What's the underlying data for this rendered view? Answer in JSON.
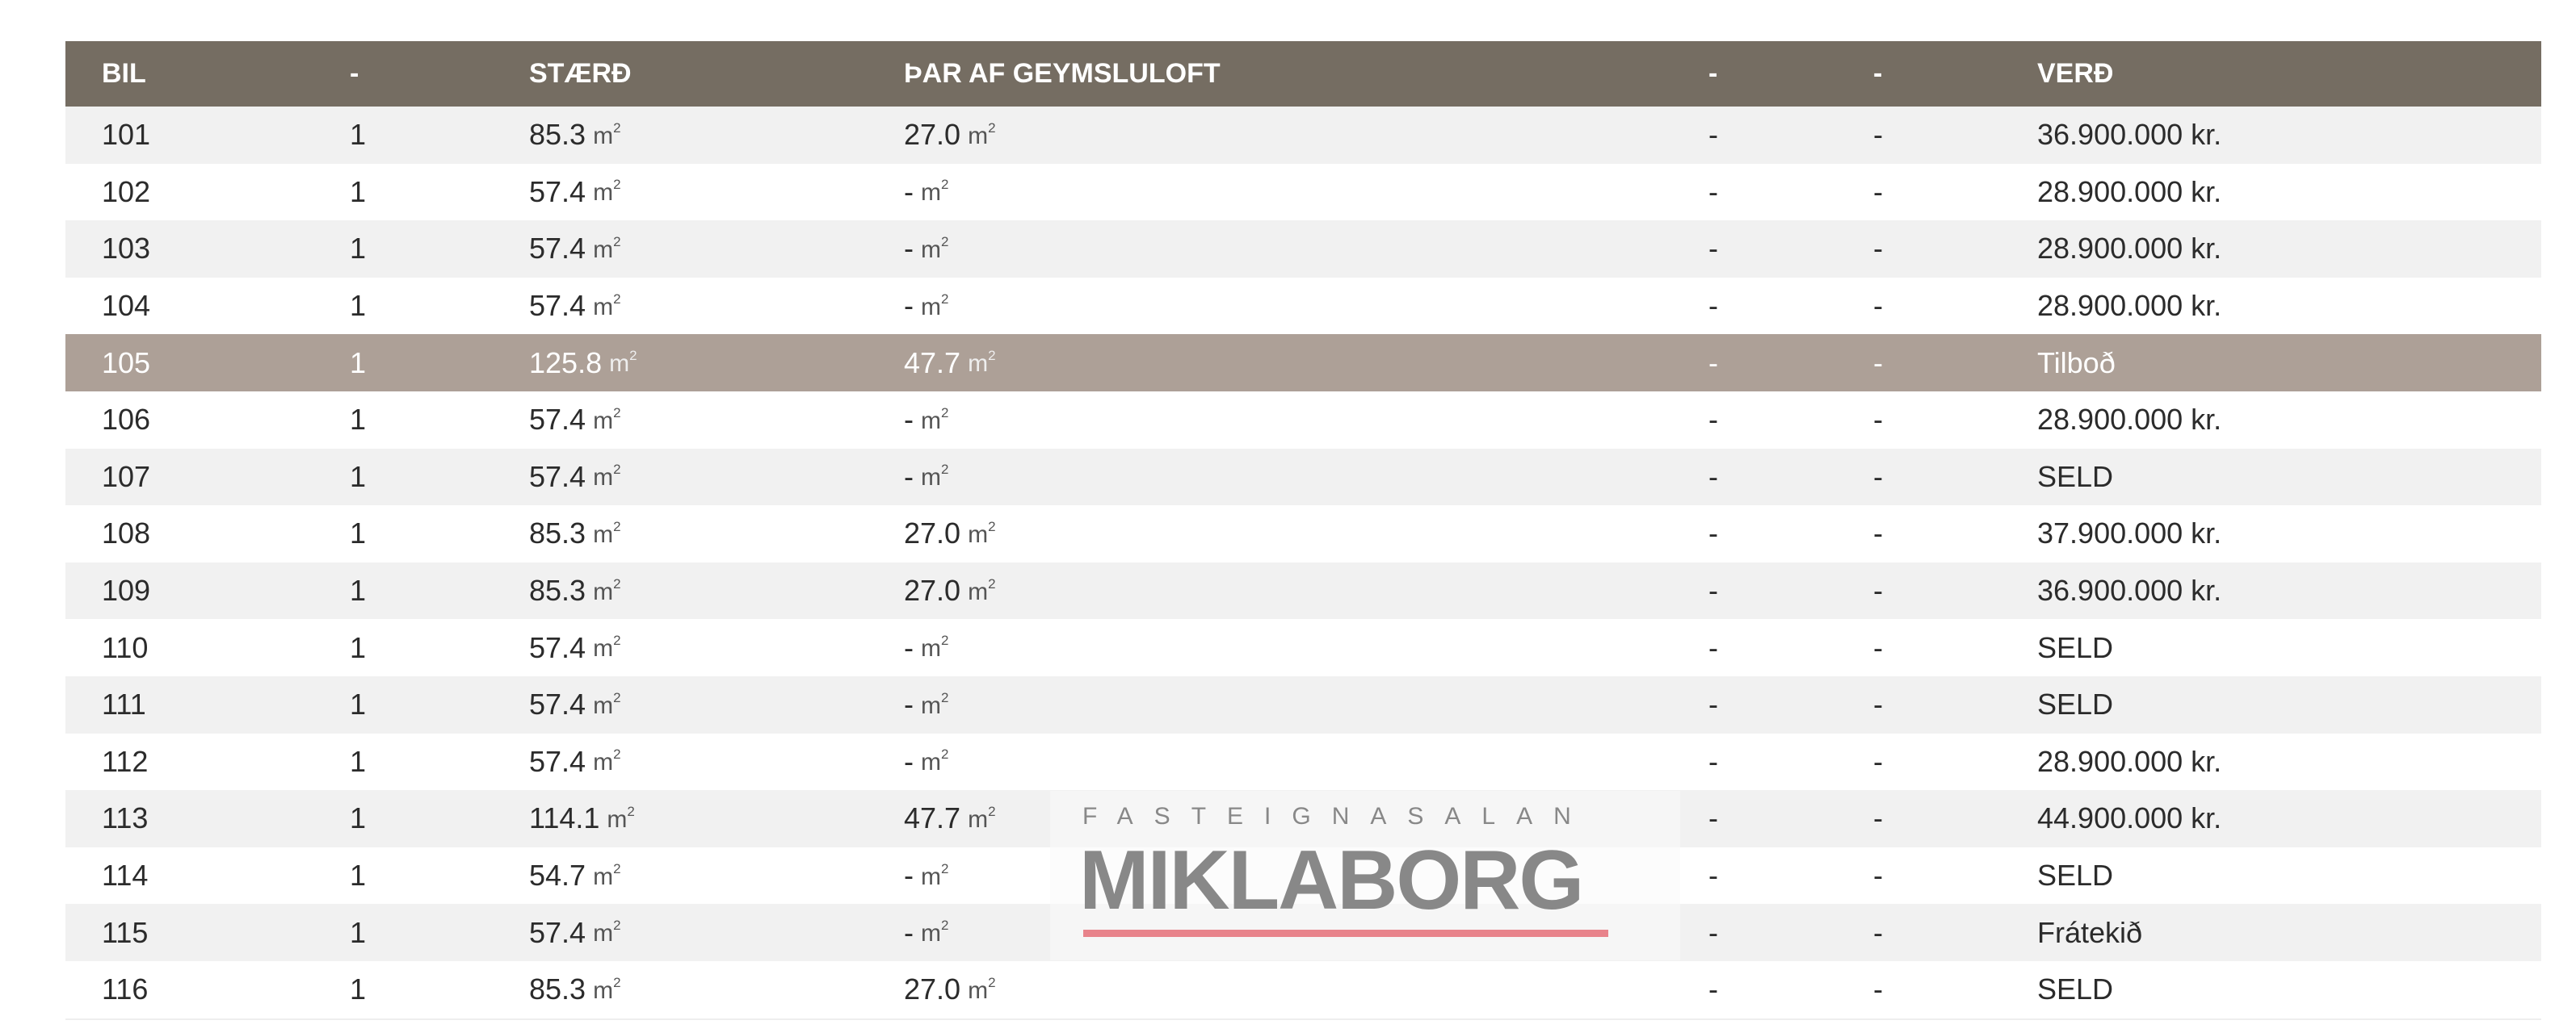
{
  "table": {
    "headers": [
      "BIL",
      "-",
      "STÆRÐ",
      "ÞAR AF GEYMSLULOFT",
      "-",
      "-",
      "VERÐ"
    ],
    "unit": "m",
    "unit_sup": "2",
    "highlighted_row": "105",
    "rows": [
      {
        "bil": "101",
        "c1": "1",
        "size": "85.3",
        "loft": "27.0",
        "c4": "-",
        "c5": "-",
        "price": "36.900.000 kr."
      },
      {
        "bil": "102",
        "c1": "1",
        "size": "57.4",
        "loft": "-",
        "c4": "-",
        "c5": "-",
        "price": "28.900.000 kr."
      },
      {
        "bil": "103",
        "c1": "1",
        "size": "57.4",
        "loft": "-",
        "c4": "-",
        "c5": "-",
        "price": "28.900.000 kr."
      },
      {
        "bil": "104",
        "c1": "1",
        "size": "57.4",
        "loft": "-",
        "c4": "-",
        "c5": "-",
        "price": "28.900.000 kr."
      },
      {
        "bil": "105",
        "c1": "1",
        "size": "125.8",
        "loft": "47.7",
        "c4": "-",
        "c5": "-",
        "price": "Tilboð"
      },
      {
        "bil": "106",
        "c1": "1",
        "size": "57.4",
        "loft": "-",
        "c4": "-",
        "c5": "-",
        "price": "28.900.000 kr."
      },
      {
        "bil": "107",
        "c1": "1",
        "size": "57.4",
        "loft": "-",
        "c4": "-",
        "c5": "-",
        "price": "SELD"
      },
      {
        "bil": "108",
        "c1": "1",
        "size": "85.3",
        "loft": "27.0",
        "c4": "-",
        "c5": "-",
        "price": "37.900.000 kr."
      },
      {
        "bil": "109",
        "c1": "1",
        "size": "85.3",
        "loft": "27.0",
        "c4": "-",
        "c5": "-",
        "price": "36.900.000 kr."
      },
      {
        "bil": "110",
        "c1": "1",
        "size": "57.4",
        "loft": "-",
        "c4": "-",
        "c5": "-",
        "price": "SELD"
      },
      {
        "bil": "111",
        "c1": "1",
        "size": "57.4",
        "loft": "-",
        "c4": "-",
        "c5": "-",
        "price": "SELD"
      },
      {
        "bil": "112",
        "c1": "1",
        "size": "57.4",
        "loft": "-",
        "c4": "-",
        "c5": "-",
        "price": "28.900.000 kr."
      },
      {
        "bil": "113",
        "c1": "1",
        "size": "114.1",
        "loft": "47.7",
        "c4": "-",
        "c5": "-",
        "price": "44.900.000 kr."
      },
      {
        "bil": "114",
        "c1": "1",
        "size": "54.7",
        "loft": "-",
        "c4": "-",
        "c5": "-",
        "price": "SELD"
      },
      {
        "bil": "115",
        "c1": "1",
        "size": "57.4",
        "loft": "-",
        "c4": "-",
        "c5": "-",
        "price": "Frátekið"
      },
      {
        "bil": "116",
        "c1": "1",
        "size": "85.3",
        "loft": "27.0",
        "c4": "-",
        "c5": "-",
        "price": "SELD"
      }
    ]
  },
  "watermark": {
    "subtitle": "FASTEIGNASALAN",
    "brand": "MIKLABORG",
    "bar_color": "#e8838b"
  },
  "colors": {
    "header_bg": "#756d62",
    "highlight_bg": "#ada097",
    "stripe_bg": "#f1f1f1"
  }
}
